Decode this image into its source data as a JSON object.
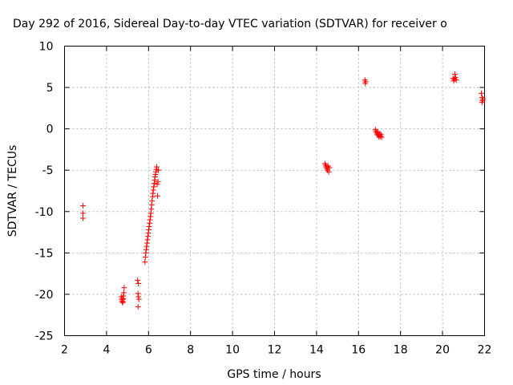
{
  "chart_data": {
    "type": "scatter",
    "title": "Day 292 of 2016, Sidereal Day-to-day VTEC variation (SDTVAR) for receiver o",
    "xlabel": "GPS time / hours",
    "ylabel": "SDTVAR / TECUs",
    "xlim": [
      2,
      22
    ],
    "ylim": [
      -25,
      10
    ],
    "xticks": [
      2,
      4,
      6,
      8,
      10,
      12,
      14,
      16,
      18,
      20,
      22
    ],
    "yticks": [
      -25,
      -20,
      -15,
      -10,
      -5,
      0,
      5,
      10
    ],
    "grid": true,
    "marker": "+",
    "color": "#ff0000",
    "series": [
      {
        "name": "SDTVAR",
        "x": [
          2.88,
          2.88,
          2.88,
          4.7,
          4.72,
          4.74,
          4.76,
          4.78,
          4.8,
          4.82,
          4.84,
          4.78,
          4.8,
          5.48,
          5.5,
          5.52,
          5.5,
          5.52,
          5.54,
          5.83,
          5.85,
          5.87,
          5.89,
          5.91,
          5.93,
          5.95,
          5.97,
          5.99,
          6.01,
          6.03,
          6.05,
          6.07,
          6.09,
          6.11,
          6.13,
          6.15,
          6.17,
          6.19,
          6.21,
          6.23,
          6.25,
          6.27,
          6.29,
          6.31,
          6.33,
          6.35,
          6.37,
          6.39,
          6.41,
          6.43,
          6.45,
          6.47,
          14.4,
          14.43,
          14.46,
          14.49,
          14.52,
          14.55,
          14.58,
          14.61,
          16.3,
          16.32,
          16.34,
          16.8,
          16.83,
          16.86,
          16.89,
          16.92,
          16.95,
          16.98,
          17.01,
          17.04,
          17.07,
          17.1,
          20.5,
          20.53,
          20.56,
          20.59,
          20.62,
          20.65,
          21.85,
          21.88,
          21.9,
          21.92,
          21.88
        ],
        "y": [
          -9.3,
          -10.2,
          -10.8,
          -20.3,
          -20.6,
          -20.8,
          -21.0,
          -20.5,
          -20.2,
          -19.8,
          -19.2,
          -20.9,
          -20.6,
          -18.3,
          -19.9,
          -20.3,
          -21.5,
          -18.7,
          -20.6,
          -16.1,
          -15.5,
          -15.0,
          -14.6,
          -14.2,
          -13.8,
          -13.4,
          -13.0,
          -12.6,
          -12.2,
          -11.8,
          -11.4,
          -11.0,
          -10.6,
          -10.2,
          -9.7,
          -9.2,
          -8.7,
          -8.2,
          -7.8,
          -7.4,
          -7.0,
          -6.6,
          -6.2,
          -5.8,
          -5.5,
          -5.2,
          -4.9,
          -4.6,
          -6.7,
          -8.1,
          -6.4,
          -5.0,
          -4.2,
          -4.4,
          -4.6,
          -4.8,
          -5.0,
          -4.5,
          -5.2,
          -4.7,
          5.9,
          5.5,
          5.7,
          -0.1,
          -0.3,
          -0.5,
          -0.7,
          -0.4,
          -0.8,
          -1.0,
          -0.6,
          -0.9,
          -0.7,
          -1.0,
          6.1,
          5.8,
          6.0,
          6.6,
          6.2,
          5.9,
          4.3,
          3.8,
          3.4,
          3.6,
          3.2
        ]
      }
    ]
  }
}
